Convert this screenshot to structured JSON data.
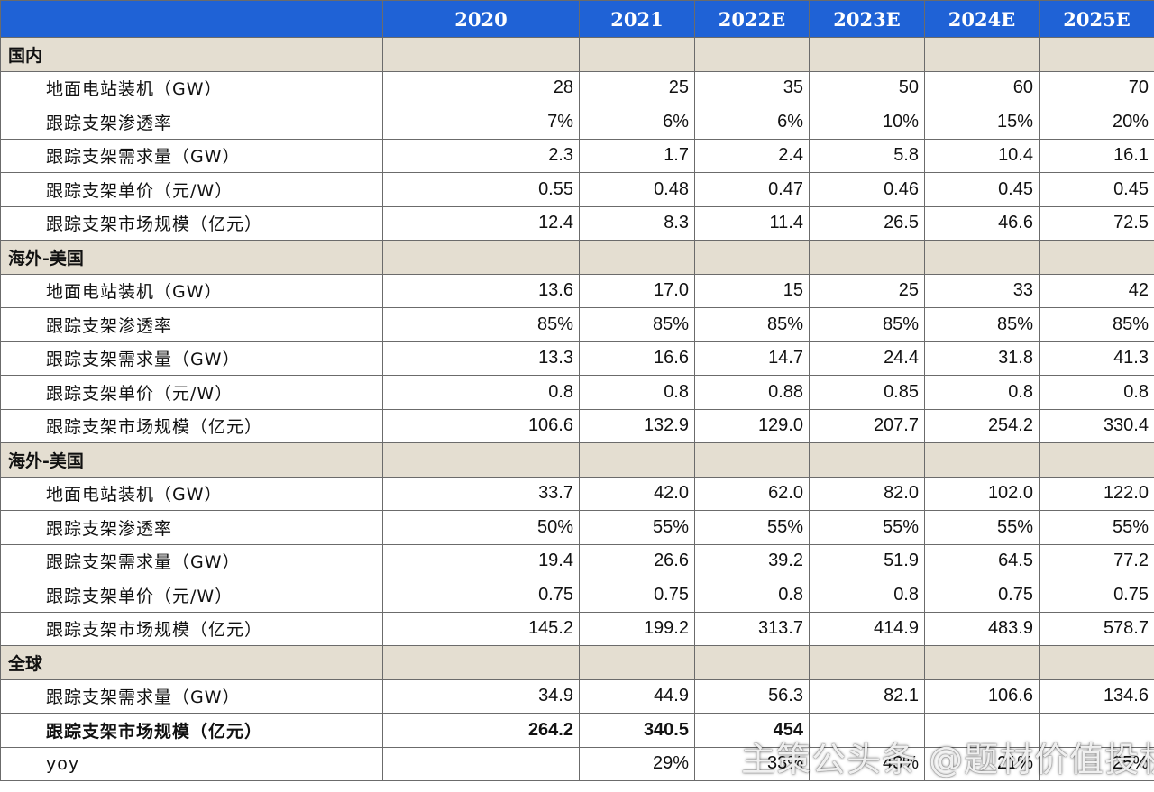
{
  "table": {
    "header": [
      "",
      "2020",
      "2021",
      "2022E",
      "2023E",
      "2024E",
      "2025E"
    ],
    "sections": [
      {
        "title": "国内",
        "rows": [
          {
            "label": "地面电站装机（GW）",
            "values": [
              "28",
              "25",
              "35",
              "50",
              "60",
              "70"
            ]
          },
          {
            "label": "跟踪支架渗透率",
            "values": [
              "7%",
              "6%",
              "6%",
              "10%",
              "15%",
              "20%"
            ]
          },
          {
            "label": "跟踪支架需求量（GW）",
            "values": [
              "2.3",
              "1.7",
              "2.4",
              "5.8",
              "10.4",
              "16.1"
            ]
          },
          {
            "label": "跟踪支架单价（元/W）",
            "values": [
              "0.55",
              "0.48",
              "0.47",
              "0.46",
              "0.45",
              "0.45"
            ]
          },
          {
            "label": "跟踪支架市场规模（亿元）",
            "values": [
              "12.4",
              "8.3",
              "11.4",
              "26.5",
              "46.6",
              "72.5"
            ]
          }
        ]
      },
      {
        "title": "海外-美国",
        "rows": [
          {
            "label": "地面电站装机（GW）",
            "values": [
              "13.6",
              "17.0",
              "15",
              "25",
              "33",
              "42"
            ]
          },
          {
            "label": "跟踪支架渗透率",
            "values": [
              "85%",
              "85%",
              "85%",
              "85%",
              "85%",
              "85%"
            ]
          },
          {
            "label": "跟踪支架需求量（GW）",
            "values": [
              "13.3",
              "16.6",
              "14.7",
              "24.4",
              "31.8",
              "41.3"
            ]
          },
          {
            "label": "跟踪支架单价（元/W）",
            "values": [
              "0.8",
              "0.8",
              "0.88",
              "0.85",
              "0.8",
              "0.8"
            ]
          },
          {
            "label": "跟踪支架市场规模（亿元）",
            "values": [
              "106.6",
              "132.9",
              "129.0",
              "207.7",
              "254.2",
              "330.4"
            ]
          }
        ]
      },
      {
        "title": "海外-美国",
        "rows": [
          {
            "label": "地面电站装机（GW）",
            "values": [
              "33.7",
              "42.0",
              "62.0",
              "82.0",
              "102.0",
              "122.0"
            ]
          },
          {
            "label": "跟踪支架渗透率",
            "values": [
              "50%",
              "55%",
              "55%",
              "55%",
              "55%",
              "55%"
            ]
          },
          {
            "label": "跟踪支架需求量（GW）",
            "values": [
              "19.4",
              "26.6",
              "39.2",
              "51.9",
              "64.5",
              "77.2"
            ]
          },
          {
            "label": "跟踪支架单价（元/W）",
            "values": [
              "0.75",
              "0.75",
              "0.8",
              "0.8",
              "0.75",
              "0.75"
            ]
          },
          {
            "label": "跟踪支架市场规模（亿元）",
            "values": [
              "145.2",
              "199.2",
              "313.7",
              "414.9",
              "483.9",
              "578.7"
            ]
          }
        ]
      },
      {
        "title": "全球",
        "rows": [
          {
            "label": "跟踪支架需求量（GW）",
            "values": [
              "34.9",
              "44.9",
              "56.3",
              "82.1",
              "106.6",
              "134.6"
            ]
          },
          {
            "label": "跟踪支架市场规模（亿元）",
            "values": [
              "264.2",
              "340.5",
              "454",
              "",
              "",
              ""
            ],
            "bold": true
          },
          {
            "label": "yoy",
            "values": [
              "",
              "29%",
              "33%",
              "43%",
              "21%",
              "25%"
            ]
          }
        ]
      }
    ]
  },
  "watermark": "主策公头条 @题材价值投机"
}
